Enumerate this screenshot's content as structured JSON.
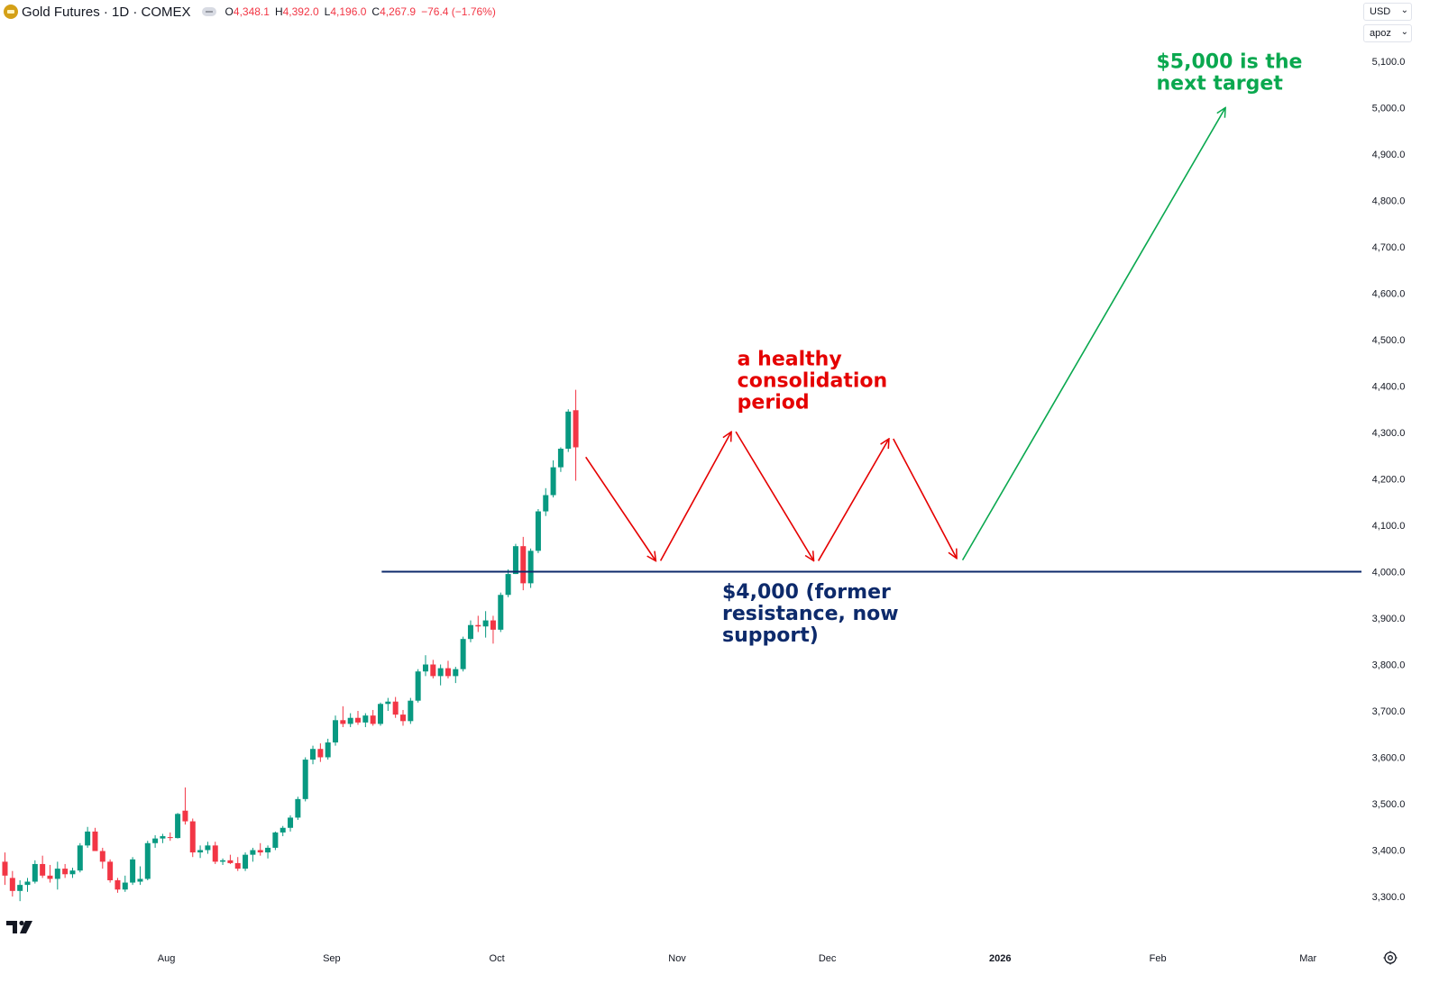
{
  "header": {
    "symbol_title": "Gold Futures · 1D · COMEX",
    "open_label": "O",
    "open": "4,348.1",
    "high_label": "H",
    "high": "4,392.0",
    "low_label": "L",
    "low": "4,196.0",
    "close_label": "C",
    "close": "4,267.9",
    "change": "−76.4 (−1.76%)"
  },
  "axis_controls": {
    "currency": "USD",
    "scale_mode": "apoz"
  },
  "colors": {
    "up": "#089981",
    "down": "#f23645",
    "support": "#0d2a6b",
    "annotation_red": "#e50000",
    "annotation_green": "#0aa84f",
    "axis_text": "#131722",
    "support_text": "#0d2a6b"
  },
  "chart_data": {
    "type": "candlestick",
    "title": "Gold Futures · 1D · COMEX",
    "y_axis": {
      "min": 3250,
      "max": 5150,
      "ticks": [
        3300,
        3400,
        3500,
        3600,
        3700,
        3800,
        3900,
        4000,
        4100,
        4200,
        4300,
        4400,
        4500,
        4600,
        4700,
        4800,
        4900,
        5000,
        5100
      ],
      "tick_labels": [
        "3,300.0",
        "3,400.0",
        "3,500.0",
        "3,600.0",
        "3,700.0",
        "3,800.0",
        "3,900.0",
        "4,000.0",
        "4,100.0",
        "4,200.0",
        "4,300.0",
        "4,400.0",
        "4,500.0",
        "4,600.0",
        "4,700.0",
        "4,800.0",
        "4,900.0",
        "5,000.0",
        "5,100.0"
      ]
    },
    "x_axis": {
      "labels": [
        {
          "label": "Aug",
          "bar": 21.5
        },
        {
          "label": "Sep",
          "bar": 43.5
        },
        {
          "label": "Oct",
          "bar": 65.5
        },
        {
          "label": "Nov",
          "bar": 89.5
        },
        {
          "label": "Dec",
          "bar": 109.5
        },
        {
          "label": "2026",
          "bar": 132.5
        },
        {
          "label": "Feb",
          "bar": 153.5
        },
        {
          "label": "Mar",
          "bar": 173.5
        }
      ]
    },
    "candles": [
      [
        3375,
        3395,
        3325,
        3345
      ],
      [
        3340,
        3355,
        3300,
        3312
      ],
      [
        3312,
        3335,
        3290,
        3325
      ],
      [
        3325,
        3340,
        3310,
        3332
      ],
      [
        3332,
        3378,
        3328,
        3370
      ],
      [
        3370,
        3388,
        3340,
        3345
      ],
      [
        3345,
        3368,
        3330,
        3338
      ],
      [
        3338,
        3375,
        3315,
        3360
      ],
      [
        3360,
        3370,
        3340,
        3348
      ],
      [
        3348,
        3362,
        3340,
        3356
      ],
      [
        3356,
        3415,
        3352,
        3410
      ],
      [
        3410,
        3450,
        3405,
        3440
      ],
      [
        3440,
        3448,
        3400,
        3398
      ],
      [
        3398,
        3405,
        3360,
        3375
      ],
      [
        3375,
        3380,
        3330,
        3335
      ],
      [
        3335,
        3340,
        3308,
        3315
      ],
      [
        3315,
        3345,
        3310,
        3330
      ],
      [
        3330,
        3385,
        3325,
        3380
      ],
      [
        3332,
        3365,
        3325,
        3338
      ],
      [
        3338,
        3420,
        3335,
        3415
      ],
      [
        3415,
        3432,
        3405,
        3425
      ],
      [
        3425,
        3435,
        3415,
        3430
      ],
      [
        3428,
        3438,
        3420,
        3426
      ],
      [
        3426,
        3480,
        3425,
        3478
      ],
      [
        3485,
        3535,
        3455,
        3462
      ],
      [
        3462,
        3468,
        3385,
        3395
      ],
      [
        3395,
        3410,
        3383,
        3400
      ],
      [
        3400,
        3418,
        3392,
        3410
      ],
      [
        3410,
        3418,
        3370,
        3375
      ],
      [
        3375,
        3382,
        3368,
        3378
      ],
      [
        3378,
        3390,
        3370,
        3372
      ],
      [
        3372,
        3385,
        3355,
        3360
      ],
      [
        3360,
        3395,
        3355,
        3390
      ],
      [
        3390,
        3405,
        3375,
        3400
      ],
      [
        3400,
        3415,
        3388,
        3395
      ],
      [
        3395,
        3410,
        3382,
        3405
      ],
      [
        3405,
        3440,
        3400,
        3438
      ],
      [
        3438,
        3452,
        3430,
        3448
      ],
      [
        3448,
        3475,
        3440,
        3470
      ],
      [
        3470,
        3515,
        3465,
        3510
      ],
      [
        3510,
        3600,
        3505,
        3595
      ],
      [
        3595,
        3625,
        3585,
        3618
      ],
      [
        3618,
        3630,
        3590,
        3600
      ],
      [
        3600,
        3640,
        3595,
        3632
      ],
      [
        3632,
        3690,
        3625,
        3680
      ],
      [
        3680,
        3710,
        3665,
        3672
      ],
      [
        3672,
        3695,
        3665,
        3685
      ],
      [
        3685,
        3700,
        3670,
        3675
      ],
      [
        3675,
        3695,
        3665,
        3690
      ],
      [
        3690,
        3702,
        3668,
        3672
      ],
      [
        3672,
        3718,
        3668,
        3715
      ],
      [
        3715,
        3728,
        3700,
        3720
      ],
      [
        3720,
        3730,
        3685,
        3692
      ],
      [
        3692,
        3702,
        3668,
        3678
      ],
      [
        3678,
        3728,
        3672,
        3722
      ],
      [
        3722,
        3790,
        3718,
        3785
      ],
      [
        3785,
        3820,
        3775,
        3800
      ],
      [
        3800,
        3810,
        3770,
        3775
      ],
      [
        3775,
        3800,
        3755,
        3792
      ],
      [
        3792,
        3808,
        3770,
        3775
      ],
      [
        3775,
        3795,
        3760,
        3790
      ],
      [
        3790,
        3860,
        3785,
        3855
      ],
      [
        3855,
        3895,
        3848,
        3885
      ],
      [
        3885,
        3905,
        3870,
        3882
      ],
      [
        3882,
        3915,
        3858,
        3895
      ],
      [
        3895,
        3905,
        3845,
        3875
      ],
      [
        3875,
        3955,
        3870,
        3950
      ],
      [
        3950,
        4005,
        3945,
        3995
      ],
      [
        3995,
        4060,
        3995,
        4055
      ],
      [
        4055,
        4075,
        3960,
        3975
      ],
      [
        3975,
        4050,
        3965,
        4045
      ],
      [
        4045,
        4135,
        4040,
        4130
      ],
      [
        4130,
        4180,
        4120,
        4165
      ],
      [
        4165,
        4240,
        4160,
        4225
      ],
      [
        4225,
        4268,
        4215,
        4265
      ],
      [
        4265,
        4350,
        4258,
        4345
      ],
      [
        4348,
        4392,
        4196,
        4268
      ]
    ],
    "support_level": {
      "price": 4000,
      "start_bar": 48,
      "end_bar": 180,
      "label": "$4,000 (former resistance, now support)"
    },
    "projection_path": [
      {
        "bar": 77,
        "price": 4255
      },
      {
        "bar": 87,
        "price": 4015
      },
      {
        "bar": 97,
        "price": 4310
      },
      {
        "bar": 108,
        "price": 4015
      },
      {
        "bar": 118,
        "price": 4295
      },
      {
        "bar": 127,
        "price": 4020
      }
    ],
    "target_path": [
      {
        "bar": 127.5,
        "price": 4025
      },
      {
        "bar": 162.5,
        "price": 5000
      }
    ],
    "annotations": [
      {
        "id": "consolidation",
        "lines": [
          "a healthy",
          "consolidation",
          "period"
        ],
        "bar": 97.5,
        "price": 4445,
        "color": "annotation_red"
      },
      {
        "id": "support",
        "lines": [
          "$4,000 (former",
          "resistance, now",
          "support)"
        ],
        "bar": 95.5,
        "price": 3943,
        "color": "support_text"
      },
      {
        "id": "target",
        "lines": [
          "$5,000 is the",
          "next target"
        ],
        "bar": 153.3,
        "price": 5085,
        "color": "annotation_green"
      }
    ]
  }
}
